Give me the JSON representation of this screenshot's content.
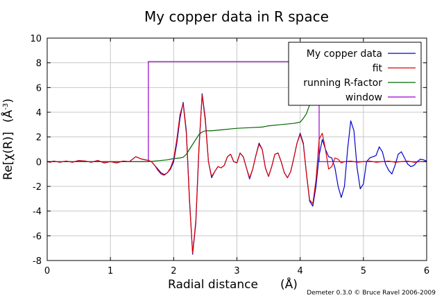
{
  "chart_data": {
    "type": "line",
    "title": "My copper data in R space",
    "xlabel": "Radial distance",
    "xlabel_unit": "(Å)",
    "ylabel": "Re[χ(R)]",
    "ylabel_unit": "(Å",
    "ylabel_unit_exp": "-3",
    "ylabel_unit_close": ")",
    "xlim": [
      0,
      6
    ],
    "ylim": [
      -8,
      10
    ],
    "xticks": [
      0,
      1,
      2,
      3,
      4,
      5,
      6
    ],
    "yticks": [
      -8,
      -6,
      -4,
      -2,
      0,
      2,
      4,
      6,
      8,
      10
    ],
    "grid": true,
    "legend_position": "top-right",
    "credit": "Demeter 0.3.0 © Bruce Ravel 2006-2009",
    "series": [
      {
        "name": "My copper data",
        "color": "#0000cc",
        "points": [
          [
            0.0,
            0.0
          ],
          [
            0.05,
            -0.05
          ],
          [
            0.1,
            0.05
          ],
          [
            0.2,
            -0.05
          ],
          [
            0.3,
            0.05
          ],
          [
            0.4,
            -0.05
          ],
          [
            0.5,
            0.1
          ],
          [
            0.6,
            0.05
          ],
          [
            0.7,
            -0.05
          ],
          [
            0.8,
            0.1
          ],
          [
            0.9,
            -0.1
          ],
          [
            1.0,
            0.0
          ],
          [
            1.1,
            -0.1
          ],
          [
            1.2,
            0.05
          ],
          [
            1.3,
            0.0
          ],
          [
            1.4,
            0.4
          ],
          [
            1.5,
            0.2
          ],
          [
            1.6,
            0.1
          ],
          [
            1.65,
            0.0
          ],
          [
            1.7,
            -0.3
          ],
          [
            1.75,
            -0.6
          ],
          [
            1.8,
            -0.9
          ],
          [
            1.85,
            -1.05
          ],
          [
            1.9,
            -0.9
          ],
          [
            1.95,
            -0.6
          ],
          [
            2.0,
            0.0
          ],
          [
            2.05,
            1.5
          ],
          [
            2.1,
            3.5
          ],
          [
            2.15,
            4.8
          ],
          [
            2.2,
            2.5
          ],
          [
            2.25,
            -3.0
          ],
          [
            2.3,
            -7.5
          ],
          [
            2.35,
            -5.0
          ],
          [
            2.4,
            1.0
          ],
          [
            2.45,
            5.5
          ],
          [
            2.5,
            3.5
          ],
          [
            2.55,
            0.0
          ],
          [
            2.6,
            -1.3
          ],
          [
            2.65,
            -0.8
          ],
          [
            2.7,
            -0.4
          ],
          [
            2.75,
            -0.5
          ],
          [
            2.8,
            -0.3
          ],
          [
            2.85,
            0.4
          ],
          [
            2.9,
            0.6
          ],
          [
            2.95,
            0.0
          ],
          [
            3.0,
            -0.1
          ],
          [
            3.05,
            0.7
          ],
          [
            3.1,
            0.4
          ],
          [
            3.15,
            -0.5
          ],
          [
            3.2,
            -1.4
          ],
          [
            3.25,
            -0.6
          ],
          [
            3.3,
            0.5
          ],
          [
            3.35,
            1.5
          ],
          [
            3.4,
            1.0
          ],
          [
            3.45,
            -0.5
          ],
          [
            3.5,
            -1.2
          ],
          [
            3.55,
            -0.4
          ],
          [
            3.6,
            0.6
          ],
          [
            3.65,
            0.7
          ],
          [
            3.7,
            0.0
          ],
          [
            3.75,
            -0.9
          ],
          [
            3.8,
            -1.3
          ],
          [
            3.85,
            -0.8
          ],
          [
            3.9,
            0.3
          ],
          [
            3.95,
            1.5
          ],
          [
            4.0,
            2.3
          ],
          [
            4.05,
            1.5
          ],
          [
            4.1,
            -1.0
          ],
          [
            4.15,
            -3.2
          ],
          [
            4.2,
            -3.6
          ],
          [
            4.25,
            -2.0
          ],
          [
            4.3,
            0.5
          ],
          [
            4.35,
            1.8
          ],
          [
            4.4,
            1.0
          ],
          [
            4.45,
            0.4
          ],
          [
            4.5,
            0.3
          ],
          [
            4.55,
            -0.5
          ],
          [
            4.6,
            -2.0
          ],
          [
            4.65,
            -2.9
          ],
          [
            4.7,
            -2.0
          ],
          [
            4.75,
            1.0
          ],
          [
            4.8,
            3.3
          ],
          [
            4.85,
            2.5
          ],
          [
            4.9,
            -0.5
          ],
          [
            4.95,
            -2.2
          ],
          [
            5.0,
            -1.8
          ],
          [
            5.05,
            0.0
          ],
          [
            5.1,
            0.3
          ],
          [
            5.2,
            0.5
          ],
          [
            5.25,
            1.2
          ],
          [
            5.3,
            0.8
          ],
          [
            5.35,
            -0.2
          ],
          [
            5.4,
            -0.7
          ],
          [
            5.45,
            -1.0
          ],
          [
            5.5,
            -0.3
          ],
          [
            5.55,
            0.6
          ],
          [
            5.6,
            0.8
          ],
          [
            5.65,
            0.3
          ],
          [
            5.7,
            -0.2
          ],
          [
            5.75,
            -0.4
          ],
          [
            5.8,
            -0.3
          ],
          [
            5.85,
            0.0
          ],
          [
            5.9,
            0.2
          ],
          [
            5.95,
            0.15
          ],
          [
            6.0,
            0.05
          ]
        ]
      },
      {
        "name": "fit",
        "color": "#dd0000",
        "points": [
          [
            0.0,
            0.0
          ],
          [
            0.05,
            -0.05
          ],
          [
            0.1,
            0.05
          ],
          [
            0.2,
            -0.05
          ],
          [
            0.3,
            0.05
          ],
          [
            0.4,
            -0.05
          ],
          [
            0.5,
            0.1
          ],
          [
            0.6,
            0.05
          ],
          [
            0.7,
            -0.05
          ],
          [
            0.8,
            0.1
          ],
          [
            0.9,
            -0.1
          ],
          [
            1.0,
            0.0
          ],
          [
            1.1,
            -0.1
          ],
          [
            1.2,
            0.05
          ],
          [
            1.3,
            0.0
          ],
          [
            1.4,
            0.4
          ],
          [
            1.5,
            0.2
          ],
          [
            1.6,
            0.1
          ],
          [
            1.65,
            0.0
          ],
          [
            1.7,
            -0.3
          ],
          [
            1.75,
            -0.7
          ],
          [
            1.8,
            -1.0
          ],
          [
            1.85,
            -1.1
          ],
          [
            1.9,
            -0.9
          ],
          [
            1.95,
            -0.5
          ],
          [
            2.0,
            0.2
          ],
          [
            2.05,
            1.8
          ],
          [
            2.1,
            3.8
          ],
          [
            2.15,
            4.7
          ],
          [
            2.2,
            2.3
          ],
          [
            2.25,
            -3.2
          ],
          [
            2.3,
            -7.4
          ],
          [
            2.35,
            -4.8
          ],
          [
            2.4,
            1.2
          ],
          [
            2.45,
            5.4
          ],
          [
            2.5,
            3.3
          ],
          [
            2.55,
            0.0
          ],
          [
            2.6,
            -1.2
          ],
          [
            2.65,
            -0.8
          ],
          [
            2.7,
            -0.4
          ],
          [
            2.75,
            -0.5
          ],
          [
            2.8,
            -0.3
          ],
          [
            2.85,
            0.4
          ],
          [
            2.9,
            0.6
          ],
          [
            2.95,
            0.0
          ],
          [
            3.0,
            -0.1
          ],
          [
            3.05,
            0.7
          ],
          [
            3.1,
            0.4
          ],
          [
            3.15,
            -0.5
          ],
          [
            3.2,
            -1.3
          ],
          [
            3.25,
            -0.6
          ],
          [
            3.3,
            0.5
          ],
          [
            3.35,
            1.4
          ],
          [
            3.4,
            1.0
          ],
          [
            3.45,
            -0.5
          ],
          [
            3.5,
            -1.2
          ],
          [
            3.55,
            -0.4
          ],
          [
            3.6,
            0.6
          ],
          [
            3.65,
            0.7
          ],
          [
            3.7,
            0.0
          ],
          [
            3.75,
            -0.9
          ],
          [
            3.8,
            -1.3
          ],
          [
            3.85,
            -0.8
          ],
          [
            3.9,
            0.3
          ],
          [
            3.95,
            1.5
          ],
          [
            4.0,
            2.2
          ],
          [
            4.05,
            1.4
          ],
          [
            4.1,
            -1.0
          ],
          [
            4.15,
            -3.1
          ],
          [
            4.2,
            -3.4
          ],
          [
            4.25,
            -1.5
          ],
          [
            4.3,
            1.8
          ],
          [
            4.35,
            2.3
          ],
          [
            4.4,
            1.0
          ],
          [
            4.45,
            -0.6
          ],
          [
            4.5,
            -0.4
          ],
          [
            4.55,
            0.3
          ],
          [
            4.6,
            0.2
          ],
          [
            4.65,
            -0.1
          ],
          [
            4.7,
            0.0
          ],
          [
            4.8,
            0.05
          ],
          [
            4.9,
            -0.05
          ],
          [
            5.0,
            0.0
          ],
          [
            5.1,
            0.05
          ],
          [
            5.2,
            -0.05
          ],
          [
            5.3,
            0.0
          ],
          [
            5.4,
            0.05
          ],
          [
            5.5,
            -0.05
          ],
          [
            5.6,
            0.0
          ],
          [
            5.7,
            0.05
          ],
          [
            5.8,
            -0.05
          ],
          [
            5.9,
            0.0
          ],
          [
            6.0,
            0.0
          ]
        ]
      },
      {
        "name": "running R-factor",
        "color": "#006600",
        "points": [
          [
            0.0,
            0.0
          ],
          [
            1.6,
            0.0
          ],
          [
            1.7,
            0.05
          ],
          [
            1.8,
            0.1
          ],
          [
            1.9,
            0.15
          ],
          [
            2.0,
            0.25
          ],
          [
            2.1,
            0.3
          ],
          [
            2.15,
            0.35
          ],
          [
            2.2,
            0.6
          ],
          [
            2.25,
            1.0
          ],
          [
            2.3,
            1.4
          ],
          [
            2.35,
            1.8
          ],
          [
            2.4,
            2.2
          ],
          [
            2.45,
            2.4
          ],
          [
            2.5,
            2.5
          ],
          [
            2.6,
            2.5
          ],
          [
            2.7,
            2.55
          ],
          [
            2.8,
            2.6
          ],
          [
            2.9,
            2.65
          ],
          [
            3.0,
            2.7
          ],
          [
            3.2,
            2.75
          ],
          [
            3.4,
            2.8
          ],
          [
            3.5,
            2.9
          ],
          [
            3.7,
            3.0
          ],
          [
            3.9,
            3.1
          ],
          [
            4.0,
            3.2
          ],
          [
            4.05,
            3.5
          ],
          [
            4.1,
            3.9
          ],
          [
            4.15,
            4.6
          ],
          [
            4.2,
            5.6
          ],
          [
            4.25,
            6.9
          ],
          [
            4.3,
            8.2
          ]
        ]
      },
      {
        "name": "window",
        "color": "#9900cc",
        "points": [
          [
            0.0,
            0.0
          ],
          [
            1.6,
            0.0
          ],
          [
            1.6,
            8.1
          ],
          [
            4.3,
            8.1
          ],
          [
            4.3,
            0.0
          ],
          [
            6.0,
            0.0
          ]
        ]
      }
    ]
  }
}
